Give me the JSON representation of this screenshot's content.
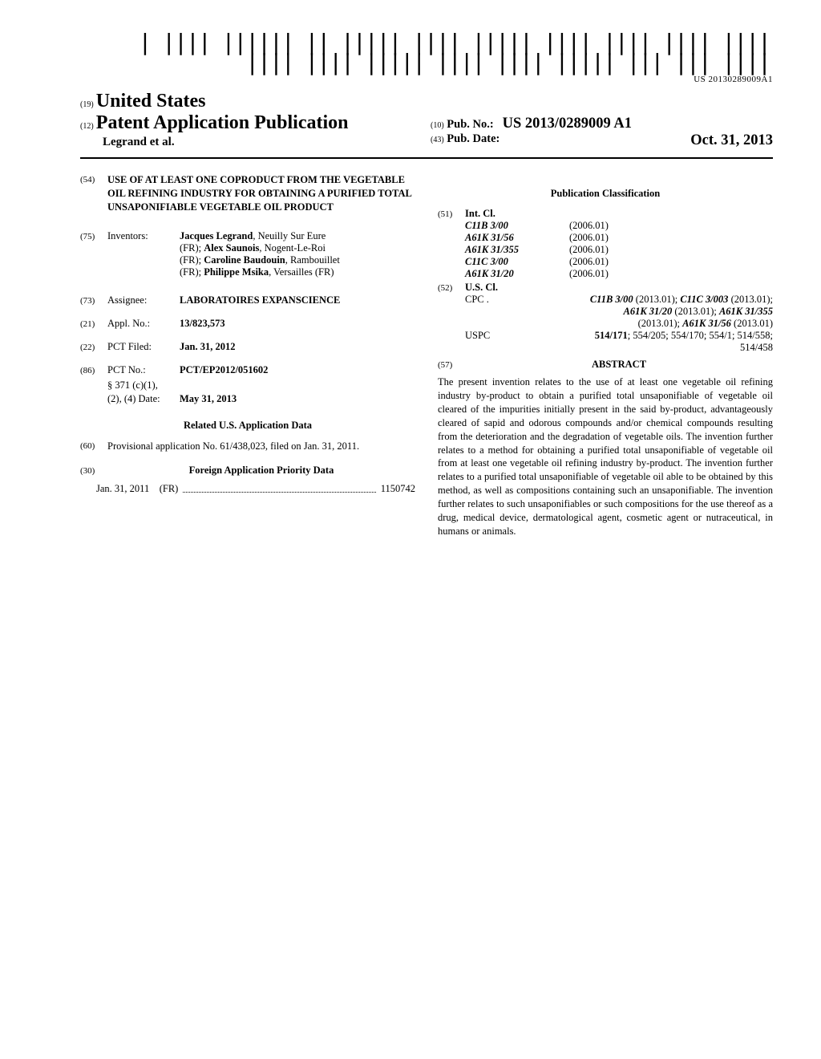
{
  "barcode_number": "US 20130289009A1",
  "header": {
    "num19": "(19)",
    "country": "United States",
    "num12": "(12)",
    "doc_type": "Patent Application Publication",
    "authors_line": "Legrand et al.",
    "num10": "(10)",
    "pub_no_label": "Pub. No.:",
    "pub_no_value": "US 2013/0289009 A1",
    "num43": "(43)",
    "pub_date_label": "Pub. Date:",
    "pub_date_value": "Oct. 31, 2013"
  },
  "left": {
    "f54": {
      "num": "(54)",
      "title": "USE OF AT LEAST ONE COPRODUCT FROM THE VEGETABLE OIL REFINING INDUSTRY FOR OBTAINING A PURIFIED TOTAL UNSAPONIFIABLE VEGETABLE OIL PRODUCT"
    },
    "f75": {
      "num": "(75)",
      "label": "Inventors:",
      "lines": [
        "Jacques Legrand, Neuilly Sur Eure",
        "(FR); Alex Saunois, Nogent-Le-Roi",
        "(FR); Caroline Baudouin, Rambouillet",
        "(FR); Philippe Msika, Versailles (FR)"
      ],
      "bold_names": [
        "Jacques Legrand",
        "Alex Saunois",
        "Caroline Baudouin",
        "Philippe Msika"
      ]
    },
    "f73": {
      "num": "(73)",
      "label": "Assignee:",
      "value": "LABORATOIRES EXPANSCIENCE"
    },
    "f21": {
      "num": "(21)",
      "label": "Appl. No.:",
      "value": "13/823,573"
    },
    "f22": {
      "num": "(22)",
      "label": "PCT Filed:",
      "value": "Jan. 31, 2012"
    },
    "f86": {
      "num": "(86)",
      "label": "PCT No.:",
      "value": "PCT/EP2012/051602",
      "sub1": "§ 371 (c)(1),",
      "sub2": "(2), (4) Date:",
      "sub2_val": "May 31, 2013"
    },
    "related_heading": "Related U.S. Application Data",
    "f60": {
      "num": "(60)",
      "text": "Provisional application No. 61/438,023, filed on Jan. 31, 2011."
    },
    "foreign_heading_num": "(30)",
    "foreign_heading": "Foreign Application Priority Data",
    "foreign_row": {
      "date": "Jan. 31, 2011",
      "country": "(FR)",
      "number": "1150742"
    }
  },
  "right": {
    "class_heading": "Publication Classification",
    "f51": {
      "num": "(51)",
      "label": "Int. Cl.",
      "codes": [
        {
          "code": "C11B 3/00",
          "date": "(2006.01)"
        },
        {
          "code": "A61K 31/56",
          "date": "(2006.01)"
        },
        {
          "code": "A61K 31/355",
          "date": "(2006.01)"
        },
        {
          "code": "C11C 3/00",
          "date": "(2006.01)"
        },
        {
          "code": "A61K 31/20",
          "date": "(2006.01)"
        }
      ]
    },
    "f52": {
      "num": "(52)",
      "label": "U.S. Cl.",
      "cpc_prefix": "CPC  .",
      "cpc_lines": [
        "C11B 3/00 (2013.01); C11C 3/003 (2013.01);",
        "A61K 31/20 (2013.01); A61K 31/355",
        "(2013.01); A61K 31/56 (2013.01)"
      ],
      "uspc_prefix": "USPC",
      "uspc_lines": [
        "514/171; 554/205; 554/170; 554/1; 514/558;",
        "514/458"
      ]
    },
    "f57": {
      "num": "(57)",
      "label": "ABSTRACT"
    },
    "abstract": "The present invention relates to the use of at least one vegetable oil refining industry by-product to obtain a purified total unsaponifiable of vegetable oil cleared of the impurities initially present in the said by-product, advantageously cleared of sapid and odorous compounds and/or chemical compounds resulting from the deterioration and the degradation of vegetable oils. The invention further relates to a method for obtaining a purified total unsaponifiable of vegetable oil from at least one vegetable oil refining industry by-product. The invention further relates to a purified total unsaponifiable of vegetable oil able to be obtained by this method, as well as compositions containing such an unsaponifiable. The invention further relates to such unsaponifiables or such compositions for the use thereof as a drug, medical device, dermatological agent, cosmetic agent or nutraceutical, in humans or animals."
  }
}
